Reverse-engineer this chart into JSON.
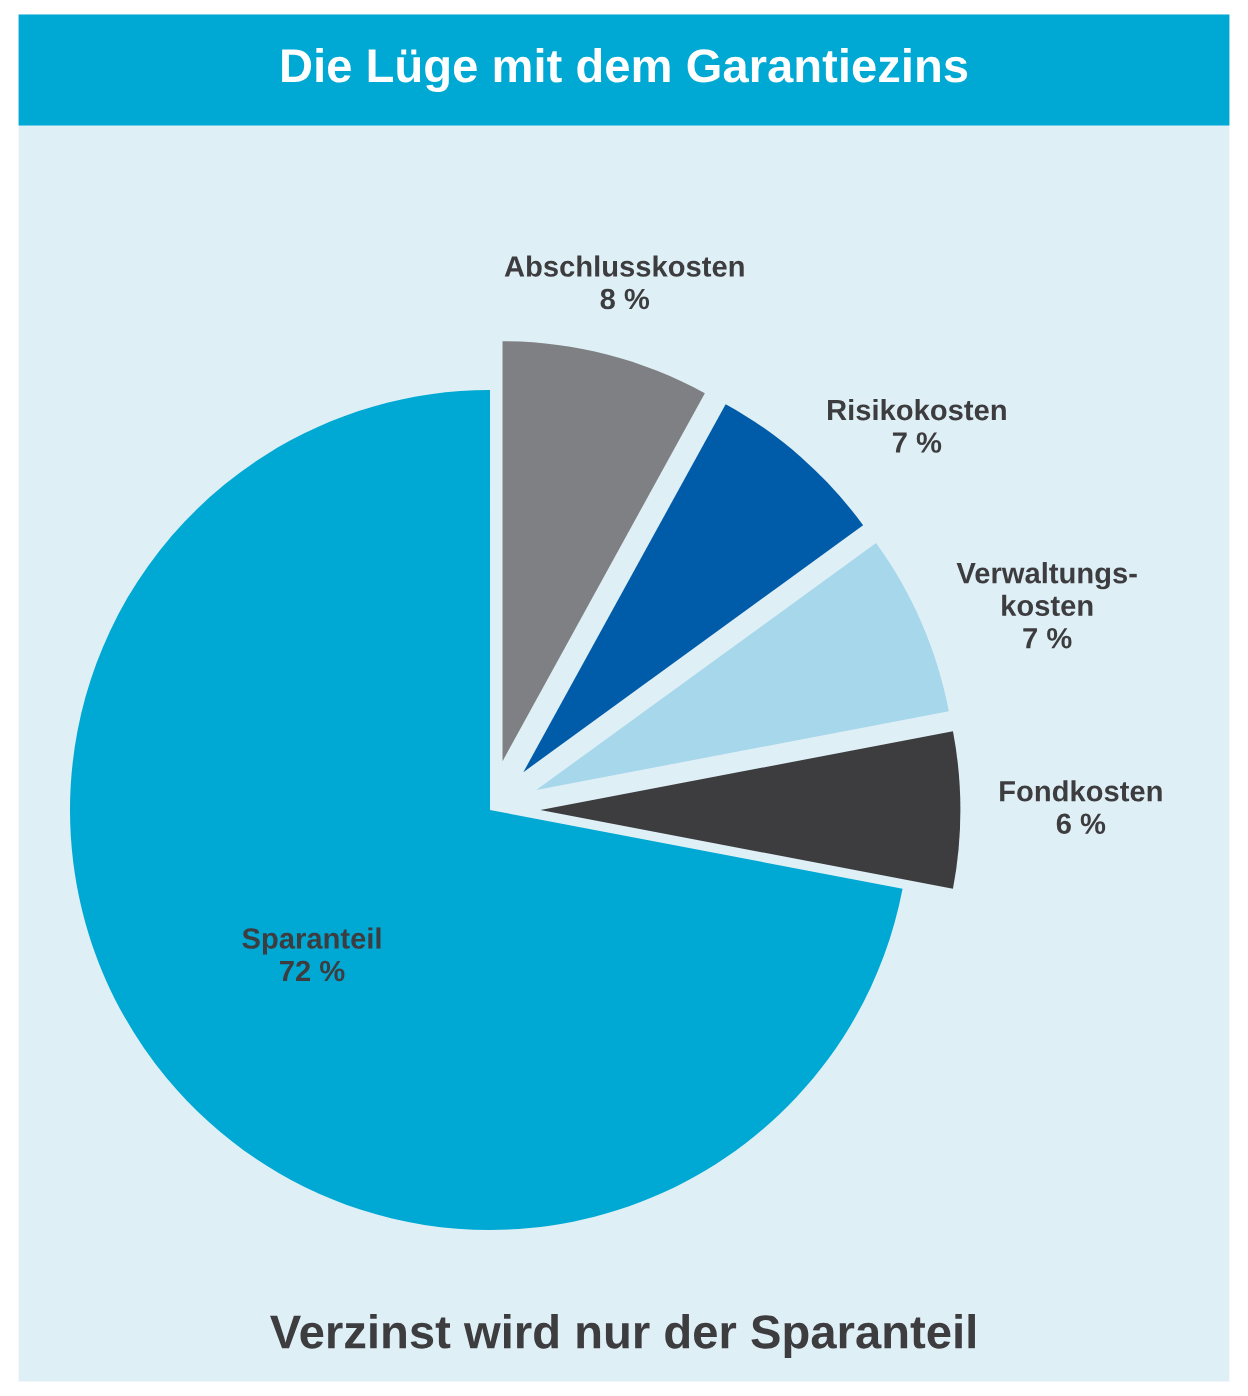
{
  "chart_data": {
    "type": "pie",
    "title": "Die Lüge mit dem Garantiezins",
    "categories": [
      "Abschlusskosten",
      "Risikokosten",
      "Verwaltungs-\nkosten",
      "Fondkosten",
      "Sparanteil"
    ],
    "values": [
      8,
      7,
      7,
      6,
      72
    ],
    "colors": [
      "#7f8083",
      "#005ca9",
      "#a6d7ea",
      "#3d3d40",
      "#00a8d4"
    ],
    "value_labels": [
      "8 %",
      "7 %",
      "7 %",
      "6 %",
      "72 %"
    ],
    "annotations": [
      "Verzinst wird nur der Sparanteil"
    ]
  }
}
